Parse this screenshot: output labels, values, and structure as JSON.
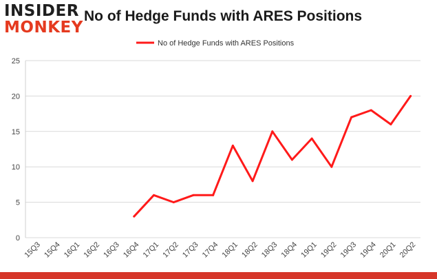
{
  "logo": {
    "line1": "INSIDER",
    "line2": "MONKEY"
  },
  "chart_data": {
    "type": "line",
    "title": "No of Hedge Funds with ARES Positions",
    "xlabel": "",
    "ylabel": "",
    "categories": [
      "15Q3",
      "15Q4",
      "16Q1",
      "16Q2",
      "16Q3",
      "16Q4",
      "17Q1",
      "17Q2",
      "17Q3",
      "17Q4",
      "18Q1",
      "18Q2",
      "18Q3",
      "18Q4",
      "19Q1",
      "19Q2",
      "19Q3",
      "19Q4",
      "20Q1",
      "20Q2"
    ],
    "series": [
      {
        "name": "No of Hedge Funds with ARES Positions",
        "values": [
          null,
          null,
          null,
          null,
          null,
          3,
          6,
          5,
          6,
          6,
          13,
          8,
          15,
          11,
          14,
          10,
          17,
          18,
          16,
          20
        ]
      }
    ],
    "ylim": [
      0,
      25
    ],
    "yticks": [
      0,
      5,
      10,
      15,
      20,
      25
    ],
    "grid": true,
    "legend": "top-center",
    "colors": {
      "line": "#ff1a1a",
      "grid": "#d9d9d9",
      "accent": "#d6362a"
    }
  }
}
